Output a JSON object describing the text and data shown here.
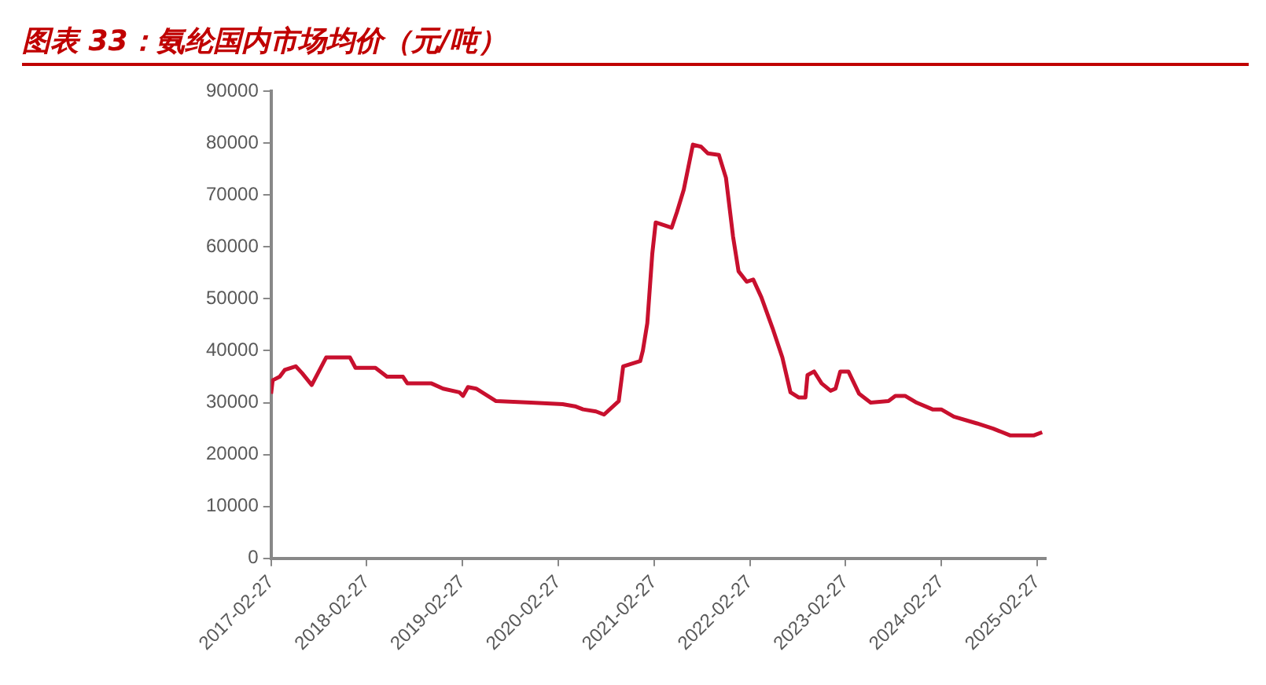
{
  "chart_data": {
    "type": "line",
    "title": "图表 33：氨纶国内市场均价（元/吨）",
    "x": [
      "2017-02-27",
      "2017-03-05",
      "2017-04-01",
      "2017-04-20",
      "2017-06-01",
      "2017-06-25",
      "2017-08-01",
      "2017-09-25",
      "2017-12-25",
      "2018-01-15",
      "2018-04-01",
      "2018-05-15",
      "2018-07-15",
      "2018-08-01",
      "2018-11-01",
      "2018-12-15",
      "2019-02-15",
      "2019-03-01",
      "2019-03-20",
      "2019-04-20",
      "2019-07-05",
      "2019-11-15",
      "2020-03-15",
      "2020-05-01",
      "2020-06-01",
      "2020-07-20",
      "2020-08-20",
      "2020-10-15",
      "2020-11-01",
      "2021-01-05",
      "2021-01-15",
      "2021-02-01",
      "2021-02-20",
      "2021-03-05",
      "2021-05-05",
      "2021-05-25",
      "2021-06-20",
      "2021-07-25",
      "2021-08-25",
      "2021-09-20",
      "2021-11-01",
      "2021-11-28",
      "2021-12-25",
      "2022-01-15",
      "2022-02-15",
      "2022-03-12",
      "2022-04-12",
      "2022-05-25",
      "2022-07-01",
      "2022-08-01",
      "2022-09-01",
      "2022-09-27",
      "2022-10-05",
      "2022-10-30",
      "2022-11-28",
      "2023-01-01",
      "2023-01-20",
      "2023-02-07",
      "2023-03-10",
      "2023-04-20",
      "2023-06-03",
      "2023-08-10",
      "2023-09-05",
      "2023-10-12",
      "2023-11-25",
      "2024-01-25",
      "2024-02-27",
      "2024-04-15",
      "2024-07-12",
      "2024-09-12",
      "2024-11-15",
      "2025-02-15",
      "2025-03-18"
    ],
    "series": [
      {
        "color": "#c8102e",
        "values": [
          31700,
          34300,
          35000,
          36300,
          37000,
          35700,
          33400,
          38700,
          38700,
          36700,
          36700,
          35000,
          35000,
          33700,
          33700,
          32700,
          32000,
          31300,
          33000,
          32700,
          30300,
          30000,
          29700,
          29300,
          28700,
          28300,
          27700,
          30300,
          37000,
          38000,
          40000,
          45300,
          58700,
          64700,
          63700,
          66700,
          71000,
          79700,
          79300,
          78000,
          77700,
          73300,
          62000,
          55300,
          53300,
          53700,
          50300,
          44300,
          38700,
          32000,
          31000,
          31000,
          35300,
          36000,
          33700,
          32300,
          32700,
          36000,
          36000,
          31700,
          30000,
          30300,
          31300,
          31300,
          30000,
          28700,
          28700,
          27300,
          26000,
          25000,
          23700,
          23700,
          24300
        ]
      }
    ],
    "xlim": [
      "2017-02-27",
      "2025-04-01"
    ],
    "xticks": [
      "2017-02-27",
      "2018-02-27",
      "2019-02-27",
      "2020-02-27",
      "2021-02-27",
      "2022-02-27",
      "2023-02-27",
      "2024-02-27",
      "2025-02-27"
    ],
    "ylim": [
      0,
      90000
    ],
    "yticks": [
      0,
      10000,
      20000,
      30000,
      40000,
      50000,
      60000,
      70000,
      80000,
      90000
    ],
    "marker": "none",
    "line_style": "solid",
    "grid": false,
    "legend": false
  }
}
